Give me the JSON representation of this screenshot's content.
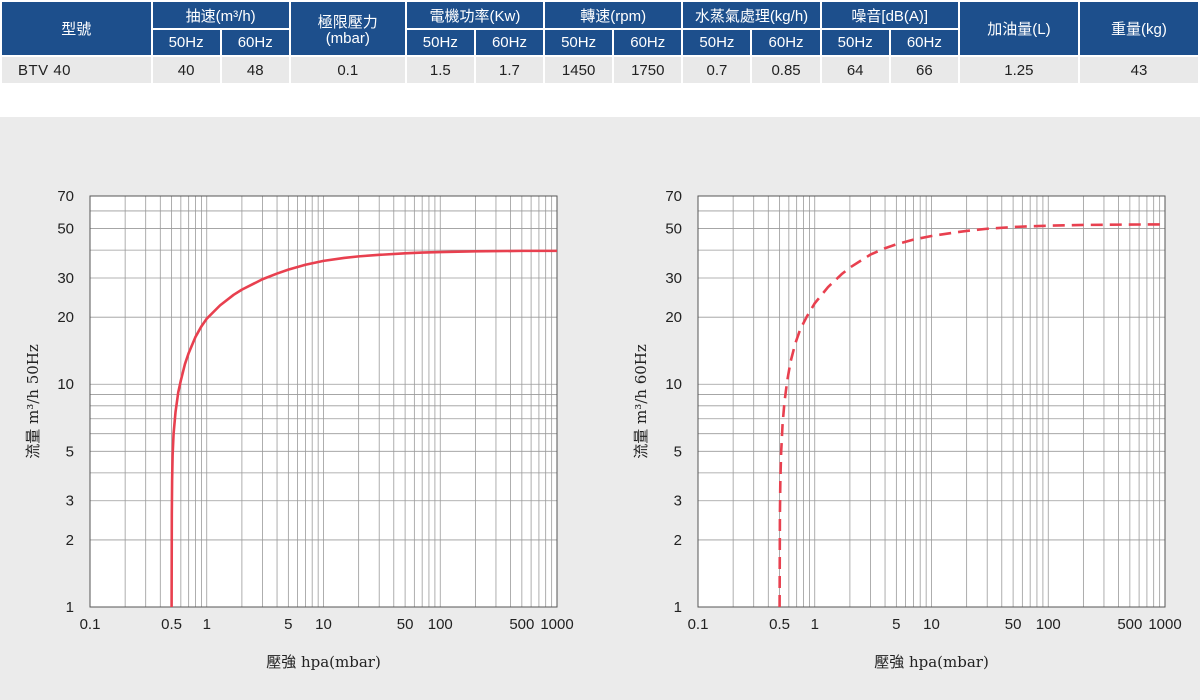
{
  "table": {
    "headers": {
      "model": "型號",
      "pumping_speed": "抽速(m³/h)",
      "ultimate_pressure": "極限壓力",
      "ultimate_pressure_unit": "(mbar)",
      "motor_power": "電機功率(Kw)",
      "speed": "轉速(rpm)",
      "vapor": "水蒸氣處理(kg/h)",
      "noise": "噪音[dB(A)]",
      "oil": "加油量(L)",
      "weight": "重量(kg)",
      "hz50": "50Hz",
      "hz60": "60Hz"
    },
    "row": {
      "model": "BTV 40",
      "pumping_50": "40",
      "pumping_60": "48",
      "ultimate_pressure": "0.1",
      "power_50": "1.5",
      "power_60": "1.7",
      "rpm_50": "1450",
      "rpm_60": "1750",
      "vapor_50": "0.7",
      "vapor_60": "0.85",
      "noise_50": "64",
      "noise_60": "66",
      "oil": "1.25",
      "weight": "43"
    }
  },
  "chart_data": [
    {
      "type": "line",
      "xlabel": "壓強 hpa(mbar)",
      "ylabel": "流量 m³/h 50Hz",
      "xscale": "log",
      "yscale": "log",
      "xlim": [
        0.1,
        1000
      ],
      "ylim": [
        1,
        70
      ],
      "x_ticks": [
        0.1,
        0.5,
        1,
        5,
        10,
        50,
        100,
        500,
        1000
      ],
      "x_tick_labels": [
        "0.1",
        "0.5",
        "1",
        "5",
        "10",
        "50",
        "100",
        "500",
        "1000"
      ],
      "y_ticks": [
        1,
        2,
        3,
        5,
        10,
        20,
        30,
        50,
        70
      ],
      "y_tick_labels": [
        "1",
        "2",
        "3",
        "5",
        "10",
        "20",
        "30",
        "50",
        "70"
      ],
      "grid": true,
      "line_style": "solid",
      "color": "#e8404f",
      "series": [
        {
          "x": [
            0.5,
            0.502,
            0.505,
            0.51,
            0.52,
            0.54,
            0.57,
            0.6,
            0.65,
            0.7,
            0.8,
            0.9,
            1,
            1.3,
            1.7,
            2,
            3,
            4,
            5,
            7,
            10,
            15,
            20,
            30,
            50,
            70,
            100,
            200,
            500,
            1000
          ],
          "y": [
            1,
            2.6,
            3.7,
            4.8,
            6,
            7.5,
            9.2,
            10.4,
            12.3,
            13.8,
            16.3,
            18.2,
            19.7,
            22.6,
            25.2,
            26.6,
            29.6,
            31.4,
            32.7,
            34.4,
            35.8,
            36.9,
            37.5,
            38.1,
            38.7,
            39,
            39.2,
            39.5,
            39.7,
            39.7
          ]
        }
      ]
    },
    {
      "type": "line",
      "xlabel": "壓強 hpa(mbar)",
      "ylabel": "流量 m³/h 60Hz",
      "xscale": "log",
      "yscale": "log",
      "xlim": [
        0.1,
        1000
      ],
      "ylim": [
        1,
        70
      ],
      "x_ticks": [
        0.1,
        0.5,
        1,
        5,
        10,
        50,
        100,
        500,
        1000
      ],
      "x_tick_labels": [
        "0.1",
        "0.5",
        "1",
        "5",
        "10",
        "50",
        "100",
        "500",
        "1000"
      ],
      "y_ticks": [
        1,
        2,
        3,
        5,
        10,
        20,
        30,
        50,
        70
      ],
      "y_tick_labels": [
        "1",
        "2",
        "3",
        "5",
        "10",
        "20",
        "30",
        "50",
        "70"
      ],
      "grid": true,
      "line_style": "dashed",
      "color": "#e8404f",
      "series": [
        {
          "x": [
            0.5,
            0.503,
            0.507,
            0.515,
            0.53,
            0.55,
            0.58,
            0.62,
            0.68,
            0.75,
            0.85,
            1,
            1.3,
            1.7,
            2,
            3,
            4,
            5,
            7,
            10,
            15,
            20,
            30,
            50,
            70,
            100,
            200,
            500,
            1000
          ],
          "y": [
            1,
            2.6,
            3.6,
            4.9,
            6.6,
            8.3,
            10.3,
            12.6,
            15.2,
            17.6,
            20,
            23.1,
            27.3,
            31.2,
            33.4,
            38.2,
            40.8,
            42.5,
            44.6,
            46.3,
            47.8,
            48.8,
            49.9,
            50.8,
            51.2,
            51.5,
            51.9,
            52.1,
            52.2
          ]
        }
      ]
    }
  ]
}
